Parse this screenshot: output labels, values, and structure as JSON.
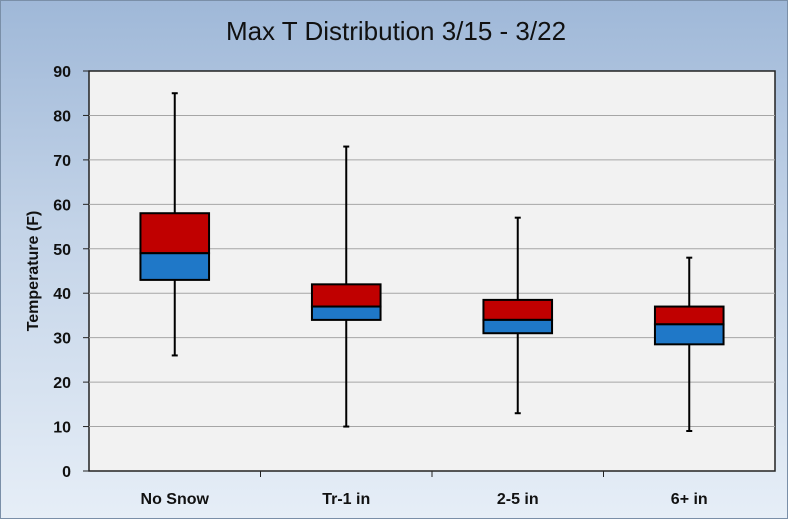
{
  "chart_data": {
    "type": "boxplot",
    "title": "Max T Distribution  3/15 - 3/22",
    "xlabel": "",
    "ylabel": "Temperature (F)",
    "ylim": [
      0,
      90
    ],
    "yticks": [
      0,
      10,
      20,
      30,
      40,
      50,
      60,
      70,
      80,
      90
    ],
    "categories": [
      "No Snow",
      "Tr-1 in",
      "2-5 in",
      "6+ in"
    ],
    "boxes": [
      {
        "min": 26,
        "q1": 43,
        "median": 49,
        "q3": 58,
        "max": 85
      },
      {
        "min": 10,
        "q1": 34,
        "median": 37,
        "q3": 42,
        "max": 73
      },
      {
        "min": 13,
        "q1": 31,
        "median": 34,
        "q3": 38.5,
        "max": 57
      },
      {
        "min": 9,
        "q1": 28.5,
        "median": 33,
        "q3": 37,
        "max": 48
      }
    ],
    "grid": true,
    "colors": {
      "upper_box": "#c00000",
      "lower_box": "#1f78c8",
      "plot_background": "#f2f2f2",
      "gridline": "#a6a6a6"
    }
  }
}
